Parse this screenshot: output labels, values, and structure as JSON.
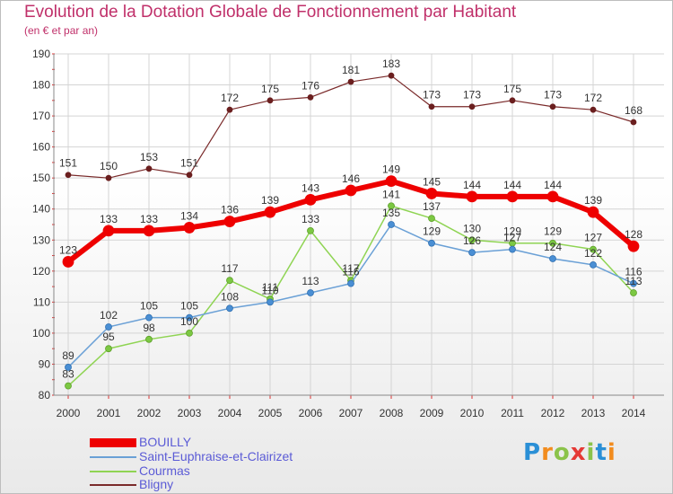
{
  "title": "Evolution de la Dotation Globale de Fonctionnement par Habitant",
  "subtitle": "(en € et par an)",
  "logo": {
    "letters": [
      "P",
      "r",
      "o",
      "x",
      "i",
      "t",
      "i"
    ],
    "colors": [
      "#2a8fd6",
      "#f28c1e",
      "#8bc34a",
      "#e53935",
      "#8bc34a",
      "#2a8fd6",
      "#f28c1e"
    ]
  },
  "chart_data": {
    "type": "line",
    "title": "Evolution de la Dotation Globale de Fonctionnement par Habitant",
    "subtitle": "(en € et par an)",
    "xlabel": "",
    "ylabel": "",
    "x": [
      "2000",
      "2001",
      "2002",
      "2003",
      "2004",
      "2005",
      "2006",
      "2007",
      "2008",
      "2009",
      "2010",
      "2011",
      "2012",
      "2013",
      "2014"
    ],
    "ylim": [
      80,
      190
    ],
    "yticks": [
      "80",
      "90",
      "100",
      "110",
      "120",
      "130",
      "140",
      "150",
      "160",
      "170",
      "180",
      "190"
    ],
    "grid": true,
    "legend_position": "bottom-left",
    "series": [
      {
        "name": "BOUILLY",
        "color": "#ee0000",
        "values": [
          123,
          133,
          133,
          134,
          136,
          139,
          143,
          146,
          149,
          145,
          144,
          144,
          144,
          139,
          128
        ]
      },
      {
        "name": "Saint-Euphraise-et-Clairizet",
        "color": "#6aa0d6",
        "values": [
          89,
          102,
          105,
          105,
          108,
          110,
          113,
          116,
          135,
          129,
          126,
          127,
          124,
          122,
          116
        ]
      },
      {
        "name": "Courmas",
        "color": "#8fd453",
        "values": [
          83,
          95,
          98,
          100,
          117,
          111,
          133,
          117,
          141,
          137,
          130,
          129,
          129,
          127,
          113
        ]
      },
      {
        "name": "Bligny",
        "color": "#7a2a2a",
        "values": [
          151,
          150,
          153,
          151,
          172,
          175,
          176,
          181,
          183,
          173,
          173,
          175,
          173,
          172,
          168
        ]
      }
    ]
  }
}
